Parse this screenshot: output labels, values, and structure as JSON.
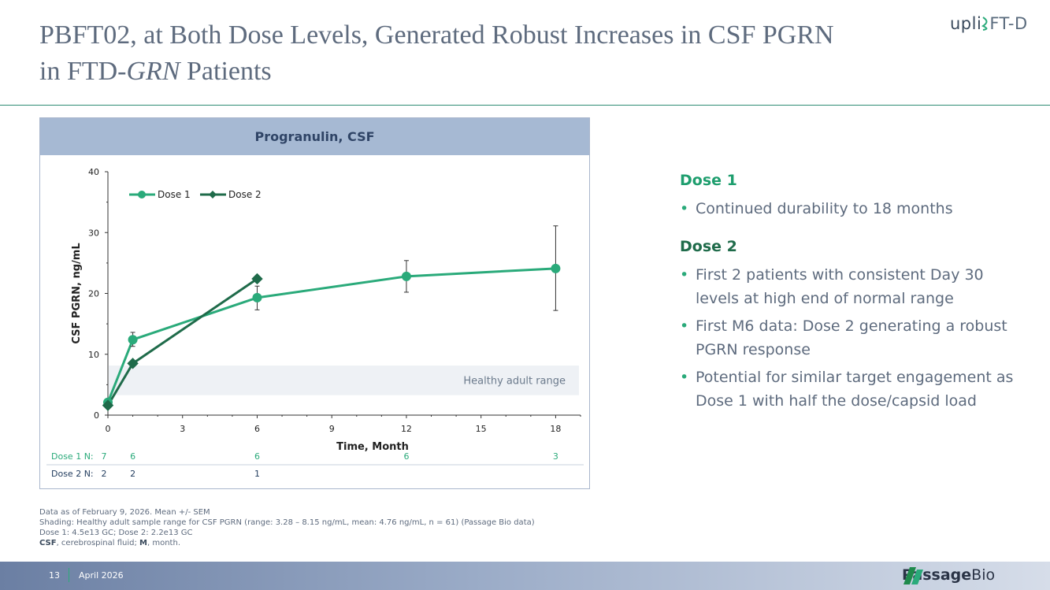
{
  "slide": {
    "title_line1": "PBFT02, at Both Dose Levels, Generated Robust Increases in CSF PGRN",
    "title_line2_prefix": "in FTD-",
    "title_line2_italic": "GRN",
    "title_line2_suffix": " Patients",
    "brand_prefix": "upli",
    "brand_suffix": "FT-D",
    "page_number": "13",
    "date": "April 2026",
    "company_name": "Passage",
    "company_suffix": "Bio"
  },
  "chart_data": {
    "type": "line",
    "title": "Progranulin, CSF",
    "xlabel": "Time, Month",
    "ylabel": "CSF PGRN, ng/mL",
    "xlim": [
      0,
      19
    ],
    "ylim": [
      0,
      40
    ],
    "x_ticks": [
      0,
      3,
      6,
      9,
      12,
      15,
      18
    ],
    "y_ticks": [
      0,
      10,
      20,
      30,
      40
    ],
    "legend_position": "top-left",
    "healthy_range": {
      "label": "Healthy adult range",
      "low": 3.28,
      "high": 8.15
    },
    "series": [
      {
        "name": "Dose 1",
        "color": "#2aaa7a",
        "marker": "circle",
        "points": [
          {
            "x": 0,
            "y": 2.1
          },
          {
            "x": 1,
            "y": 12.4,
            "err_low": 11.3,
            "err_high": 13.6
          },
          {
            "x": 6,
            "y": 19.3,
            "err_low": 17.3,
            "err_high": 21.2
          },
          {
            "x": 12,
            "y": 22.8,
            "err_low": 20.2,
            "err_high": 25.4
          },
          {
            "x": 18,
            "y": 24.1,
            "err_low": 17.2,
            "err_high": 31.1
          }
        ]
      },
      {
        "name": "Dose 2",
        "color": "#1f6b4a",
        "marker": "diamond",
        "points": [
          {
            "x": 0,
            "y": 1.6
          },
          {
            "x": 1,
            "y": 8.5
          },
          {
            "x": 6,
            "y": 22.4
          }
        ]
      }
    ],
    "n_rows": [
      {
        "label": "Dose 1 N:",
        "color": "#2aaa7a",
        "values": [
          {
            "x": 0,
            "n": "7"
          },
          {
            "x": 1,
            "n": "6"
          },
          {
            "x": 6,
            "n": "6"
          },
          {
            "x": 12,
            "n": "6"
          },
          {
            "x": 18,
            "n": "3"
          }
        ]
      },
      {
        "label": "Dose 2 N:",
        "color": "#1f3a5c",
        "values": [
          {
            "x": 0,
            "n": "2"
          },
          {
            "x": 1,
            "n": "2"
          },
          {
            "x": 6,
            "n": "1"
          }
        ]
      }
    ]
  },
  "sidebar": {
    "dose1_heading": "Dose 1",
    "dose1_bullets": [
      "Continued durability to 18 months"
    ],
    "dose2_heading": "Dose 2",
    "dose2_bullets": [
      "First 2 patients with consistent Day 30 levels at high end of normal range",
      "First M6 data: Dose 2 generating a robust PGRN response",
      "Potential for similar target engagement as Dose 1 with half the dose/capsid load"
    ]
  },
  "footnotes": {
    "line1": "Data as of February 9, 2026. Mean +/- SEM",
    "line2": "Shading: Healthy adult sample range for CSF PGRN (range: 3.28 – 8.15 ng/mL, mean: 4.76 ng/mL, n = 61) (Passage Bio data)",
    "line3": "Dose 1: 4.5e13 GC; Dose 2: 2.2e13 GC",
    "line4_csf": "CSF",
    "line4_csf_def": ", cerebrospinal fluid; ",
    "line4_m": "M",
    "line4_m_def": ", month."
  }
}
